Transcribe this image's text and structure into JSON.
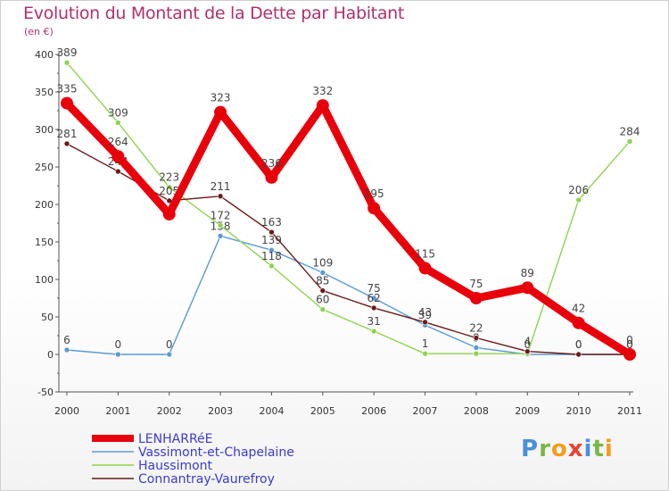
{
  "header": {
    "title": "Evolution du Montant de la Dette par Habitant",
    "unit": "(en €)"
  },
  "logo": {
    "text": "Proxiti"
  },
  "chart_data": {
    "type": "line",
    "title": "Evolution du Montant de la Dette par Habitant",
    "ylabel": "(en €)",
    "xlabel": "",
    "x": [
      "2000",
      "2001",
      "2002",
      "2003",
      "2004",
      "2005",
      "2006",
      "2007",
      "2008",
      "2009",
      "2010",
      "2011"
    ],
    "ylim": [
      -50,
      400
    ],
    "yticks": [
      -50,
      0,
      50,
      100,
      150,
      200,
      250,
      300,
      350,
      400
    ],
    "grid": false,
    "legend_position": "bottom-left",
    "series": [
      {
        "name": "LENHARRéE",
        "color": "#e8000b",
        "values": [
          335,
          264,
          187,
          323,
          236,
          332,
          195,
          115,
          75,
          89,
          42,
          0
        ],
        "labels": [
          "335",
          "264",
          "",
          "323",
          "236",
          "332",
          "195",
          "115",
          "75",
          "89",
          "42",
          "0"
        ]
      },
      {
        "name": "Vassimont-et-Chapelaine",
        "color": "#5b9bd5",
        "values": [
          6,
          0,
          0,
          158,
          139,
          109,
          75,
          39,
          9,
          0,
          0,
          0
        ],
        "labels": [
          "6",
          "0",
          "0",
          "158",
          "139",
          "109",
          "75",
          "39",
          "9",
          "0",
          "0",
          "0"
        ]
      },
      {
        "name": "Haussimont",
        "color": "#8ed34e",
        "values": [
          389,
          309,
          223,
          172,
          118,
          60,
          31,
          1,
          1,
          1,
          206,
          284
        ],
        "labels": [
          "389",
          "309",
          "223",
          "172",
          "118",
          "60",
          "31",
          "1",
          "",
          "",
          "206",
          "284"
        ]
      },
      {
        "name": "Connantray-Vaurefroy",
        "color": "#6b1a1a",
        "values": [
          281,
          244,
          205,
          211,
          163,
          85,
          62,
          43,
          22,
          4,
          0,
          0
        ],
        "labels": [
          "281",
          "244",
          "205",
          "211",
          "163",
          "85",
          "62",
          "43",
          "22",
          "4",
          "0",
          "0"
        ]
      }
    ]
  }
}
